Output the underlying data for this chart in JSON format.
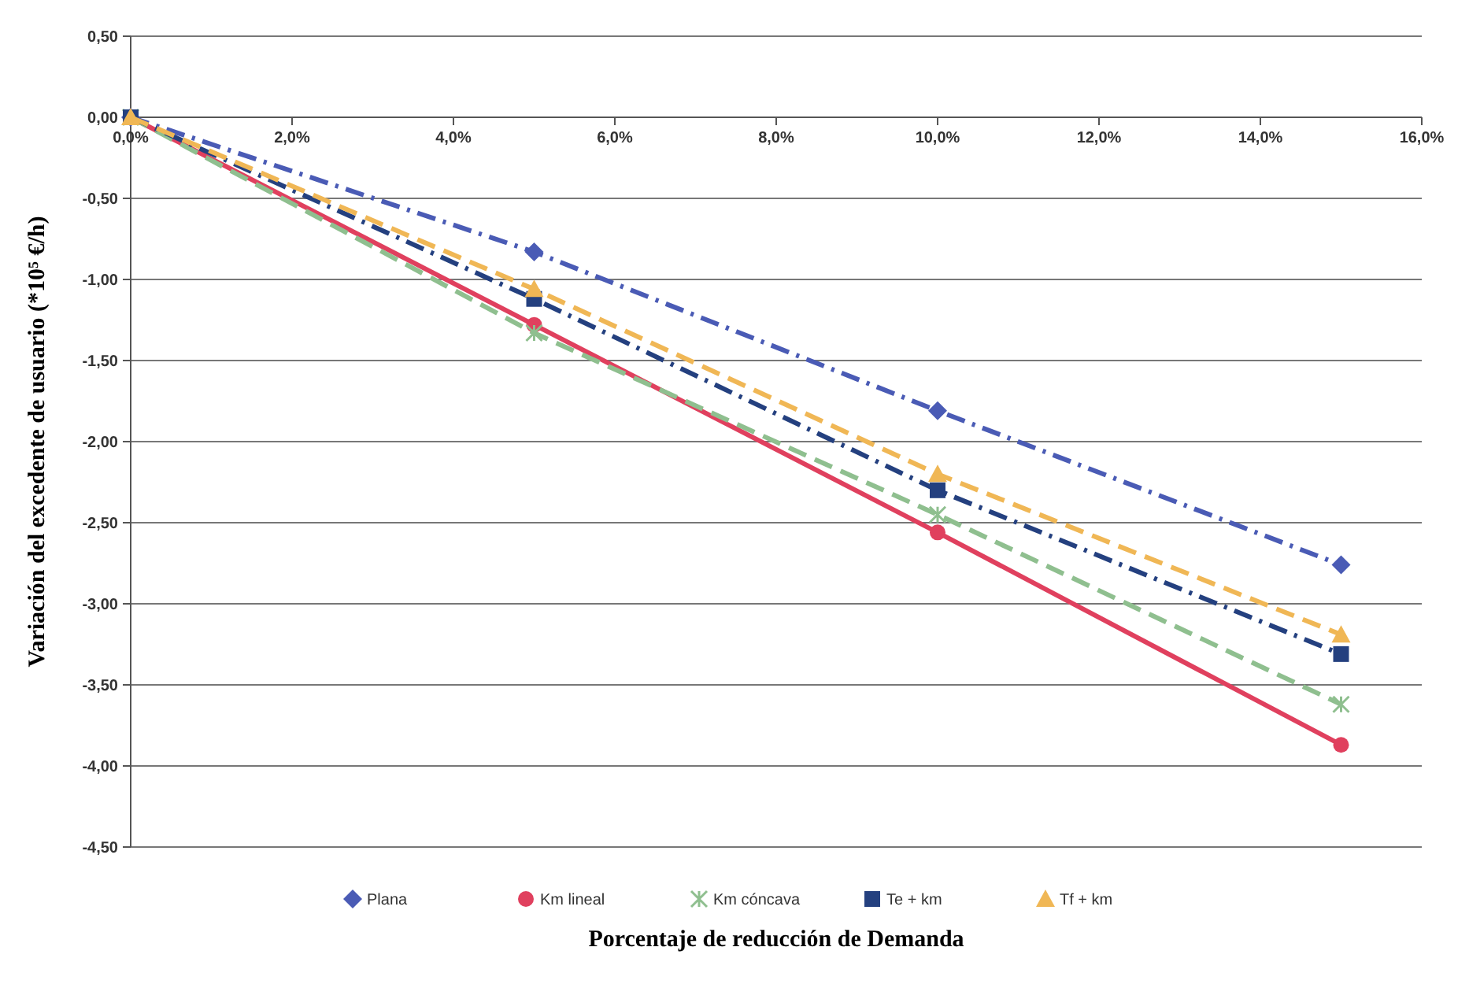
{
  "chart_data": {
    "type": "line",
    "xlabel": "Porcentaje de reducción de  Demanda",
    "ylabel": "Variación del  excedente de usuario  (*10⁵ €/h)",
    "x": [
      0,
      5,
      10,
      15
    ],
    "series": [
      {
        "name": "Plana",
        "color": "#4a5bb5",
        "values": [
          0,
          -0.83,
          -1.81,
          -2.76
        ],
        "marker": "diamond",
        "line_style": "dashdot"
      },
      {
        "name": "Km lineal",
        "color": "#e0405e",
        "values": [
          0,
          -1.28,
          -2.56,
          -3.87
        ],
        "marker": "circle",
        "line_style": "solid"
      },
      {
        "name": "Km cóncava",
        "color": "#8fbf8f",
        "values": [
          0,
          -1.33,
          -2.45,
          -3.62
        ],
        "marker": "cross",
        "line_style": "dashed"
      },
      {
        "name": "Te + km",
        "color": "#24407f",
        "values": [
          0,
          -1.12,
          -2.3,
          -3.31
        ],
        "marker": "square",
        "line_style": "dashdot"
      },
      {
        "name": "Tf + km",
        "color": "#f0b755",
        "values": [
          0,
          -1.06,
          -2.2,
          -3.19
        ],
        "marker": "triangle",
        "line_style": "dashed"
      }
    ],
    "xlim": [
      0,
      16
    ],
    "xticks": [
      {
        "value": 0,
        "label": "0,0%"
      },
      {
        "value": 2,
        "label": "2,0%"
      },
      {
        "value": 4,
        "label": "4,0%"
      },
      {
        "value": 6,
        "label": "6,0%"
      },
      {
        "value": 8,
        "label": "8,0%"
      },
      {
        "value": 10,
        "label": "10,0%"
      },
      {
        "value": 12,
        "label": "12,0%"
      },
      {
        "value": 14,
        "label": "14,0%"
      },
      {
        "value": 16,
        "label": "16,0%"
      }
    ],
    "ylim": [
      -4.5,
      0.5
    ],
    "yticks": [
      {
        "value": 0.5,
        "label": "0,50"
      },
      {
        "value": 0,
        "label": "0,00"
      },
      {
        "value": -0.5,
        "label": "-0,50"
      },
      {
        "value": -1,
        "label": "-1,00"
      },
      {
        "value": -1.5,
        "label": "-1,50"
      },
      {
        "value": -2,
        "label": "-2,00"
      },
      {
        "value": -2.5,
        "label": "-2,50"
      },
      {
        "value": -3,
        "label": "-3,00"
      },
      {
        "value": -3.5,
        "label": "-3,50"
      },
      {
        "value": -4,
        "label": "-4,00"
      },
      {
        "value": -4.5,
        "label": "-4,50"
      }
    ],
    "grid": "y",
    "legend": "bottom"
  }
}
